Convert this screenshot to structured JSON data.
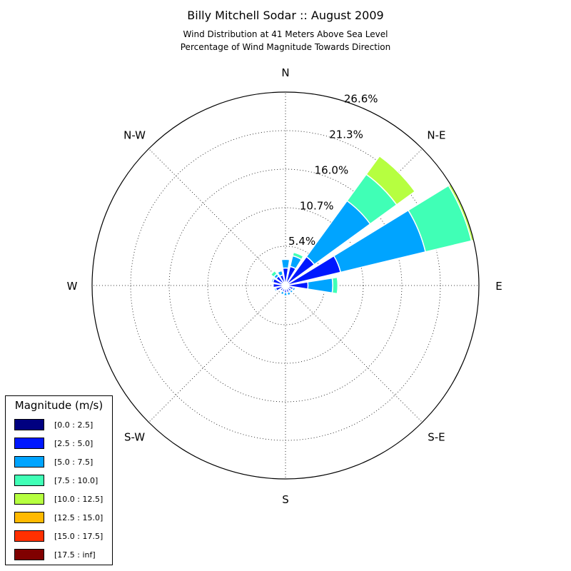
{
  "title": "Billy Mitchell Sodar :: August 2009",
  "subtitle_line1": "Wind Distribution at 41 Meters Above Sea Level",
  "subtitle_line2": "Percentage of Wind Magnitude Towards Direction",
  "chart_data": {
    "type": "windrose",
    "title": "Billy Mitchell Sodar :: August 2009",
    "subtitle": [
      "Wind Distribution at 41 Meters Above Sea Level",
      "Percentage of Wind Magnitude Towards Direction"
    ],
    "directions": [
      "N",
      "NNE",
      "NE",
      "ENE",
      "E",
      "ESE",
      "SE",
      "SSE",
      "S",
      "SSW",
      "SW",
      "WSW",
      "W",
      "WNW",
      "NW",
      "NNW"
    ],
    "direction_labels": [
      "N",
      "N-E",
      "E",
      "S-E",
      "S",
      "S-W",
      "W",
      "N-W"
    ],
    "radial_ticks": [
      "5.4%",
      "10.7%",
      "16.0%",
      "21.3%",
      "26.6%"
    ],
    "radial_values": [
      5.4,
      10.7,
      16.0,
      21.3,
      26.6
    ],
    "r_max": 26.6,
    "grid": true,
    "legend_placement": "bottom-left",
    "legend_title": "Magnitude (m/s)",
    "series": [
      {
        "name": "[0.0 : 2.5]",
        "color": "#000080",
        "values": [
          0.3,
          0.3,
          0.3,
          0.3,
          0.3,
          0.3,
          0.2,
          0.2,
          0.2,
          0.2,
          0.2,
          0.2,
          0.2,
          0.2,
          0.2,
          0.3
        ]
      },
      {
        "name": "[2.5 : 5.0]",
        "color": "#0018ff",
        "values": [
          2.1,
          2.4,
          4.6,
          7.5,
          2.8,
          0.8,
          0.8,
          0.8,
          0.8,
          0.7,
          0.7,
          1.2,
          1.5,
          1.6,
          1.4,
          1.2
        ]
      },
      {
        "name": "[5.0 : 7.5]",
        "color": "#00a4ff",
        "values": [
          1.2,
          1.5,
          9.5,
          12.0,
          3.4,
          0.3,
          0.3,
          0.4,
          0.4,
          0.4,
          0.1,
          0.2,
          0.1,
          0.2,
          0.4,
          0.6
        ]
      },
      {
        "name": "[7.5 : 10.0]",
        "color": "#40ffb6",
        "values": [
          0.0,
          0.5,
          4.5,
          6.5,
          0.7,
          0.0,
          0.0,
          0.0,
          0.0,
          0.0,
          0.0,
          0.0,
          0.0,
          0.0,
          0.5,
          0.0
        ]
      },
      {
        "name": "[10.0 : 12.5]",
        "color": "#b6ff40",
        "values": [
          0.0,
          0.1,
          3.1,
          0.3,
          0.0,
          0.0,
          0.0,
          0.0,
          0.0,
          0.0,
          0.0,
          0.0,
          0.0,
          0.0,
          0.0,
          0.0
        ]
      },
      {
        "name": "[12.5 : 15.0]",
        "color": "#ffb900",
        "values": [
          0,
          0,
          0,
          0,
          0,
          0,
          0,
          0,
          0,
          0,
          0,
          0,
          0,
          0,
          0,
          0
        ]
      },
      {
        "name": "[15.0 : 17.5]",
        "color": "#ff3000",
        "values": [
          0,
          0,
          0,
          0,
          0,
          0,
          0,
          0,
          0,
          0,
          0,
          0,
          0,
          0,
          0,
          0
        ]
      },
      {
        "name": "[17.5 : inf]",
        "color": "#800000",
        "values": [
          0,
          0,
          0,
          0,
          0,
          0,
          0,
          0,
          0,
          0,
          0,
          0,
          0,
          0,
          0,
          0
        ]
      }
    ]
  }
}
